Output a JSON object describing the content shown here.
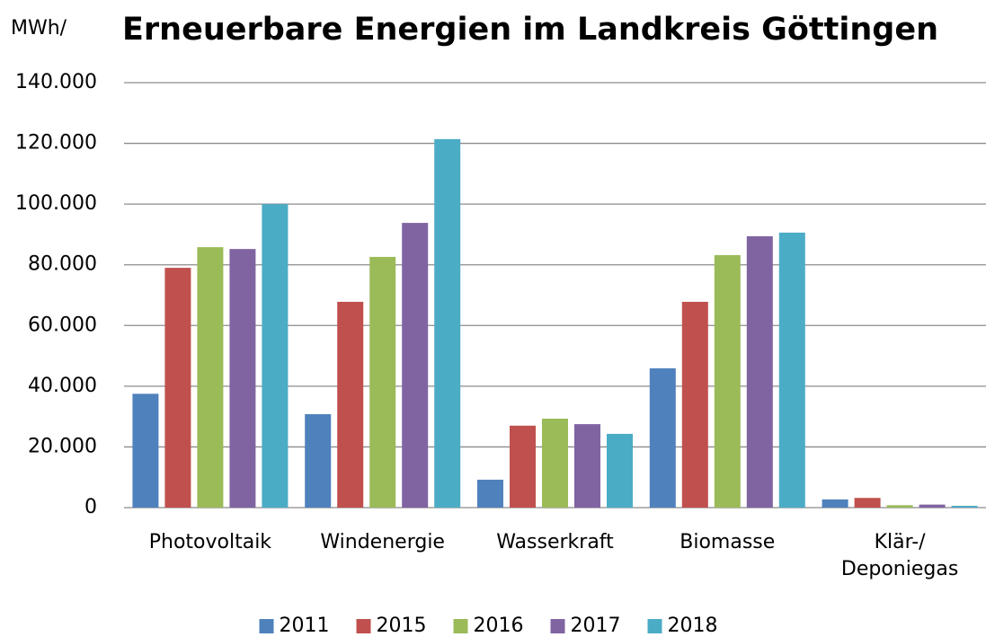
{
  "chart_data": {
    "type": "bar",
    "title": "Erneuerbare Energien im Landkreis Göttingen",
    "y_label": "MWh/",
    "categories": [
      "Photovoltaik",
      "Windenergie",
      "Wasserkraft",
      "Biomasse",
      "Klär-/\nDeponiegas"
    ],
    "series": [
      {
        "name": "2011",
        "color": "#4f81bd",
        "values": [
          37500,
          30800,
          9200,
          45900,
          2700
        ]
      },
      {
        "name": "2015",
        "color": "#c0504d",
        "values": [
          79000,
          67800,
          27000,
          67800,
          3200
        ]
      },
      {
        "name": "2016",
        "color": "#9bbb59",
        "values": [
          85800,
          82600,
          29300,
          83200,
          800
        ]
      },
      {
        "name": "2017",
        "color": "#8064a2",
        "values": [
          85200,
          93800,
          27500,
          89400,
          1000
        ]
      },
      {
        "name": "2018",
        "color": "#4bacc6",
        "values": [
          100000,
          121400,
          24300,
          90600,
          600
        ]
      }
    ],
    "ylim": [
      0,
      140000
    ],
    "yticks": [
      0,
      {
        "value": 20000,
        "label": "20.000"
      },
      {
        "value": 40000,
        "label": "40.000"
      },
      {
        "value": 60000,
        "label": "60.000"
      },
      {
        "value": 80000,
        "label": "80.000"
      },
      {
        "value": 100000,
        "label": "100.000"
      },
      {
        "value": 120000,
        "label": "120.000"
      },
      {
        "value": 140000,
        "label": "140.000"
      }
    ],
    "grid": true,
    "legend": "bottom"
  }
}
